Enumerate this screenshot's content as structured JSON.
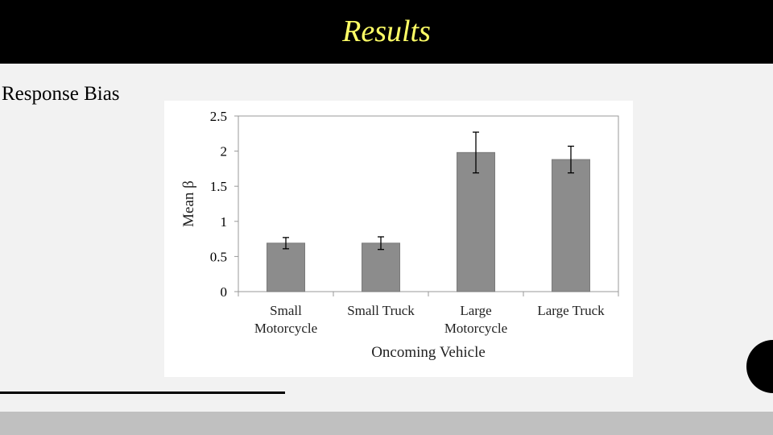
{
  "slide": {
    "title": "Results",
    "subtitle": "Response Bias"
  },
  "colors": {
    "header_bg": "#000000",
    "title": "#ffff66",
    "bar": "#8c8c8c",
    "footer": "#c0c0c0"
  },
  "chart_data": {
    "type": "bar",
    "title": "",
    "xlabel": "Oncoming  Vehicle",
    "ylabel": "Mean β",
    "categories": [
      [
        "Small",
        "Motorcycle"
      ],
      [
        "Small Truck"
      ],
      [
        "Large",
        "Motorcycle"
      ],
      [
        "Large Truck"
      ]
    ],
    "values": [
      0.69,
      0.69,
      1.98,
      1.88
    ],
    "error": [
      0.08,
      0.09,
      0.29,
      0.19
    ],
    "ylim": [
      0,
      2.5
    ],
    "yticks": [
      0,
      0.5,
      1,
      1.5,
      2,
      2.5
    ],
    "ytick_labels": [
      "0",
      "0.5",
      "1",
      "1.5",
      "2",
      "2.5"
    ],
    "grid": false,
    "legend": "none"
  }
}
